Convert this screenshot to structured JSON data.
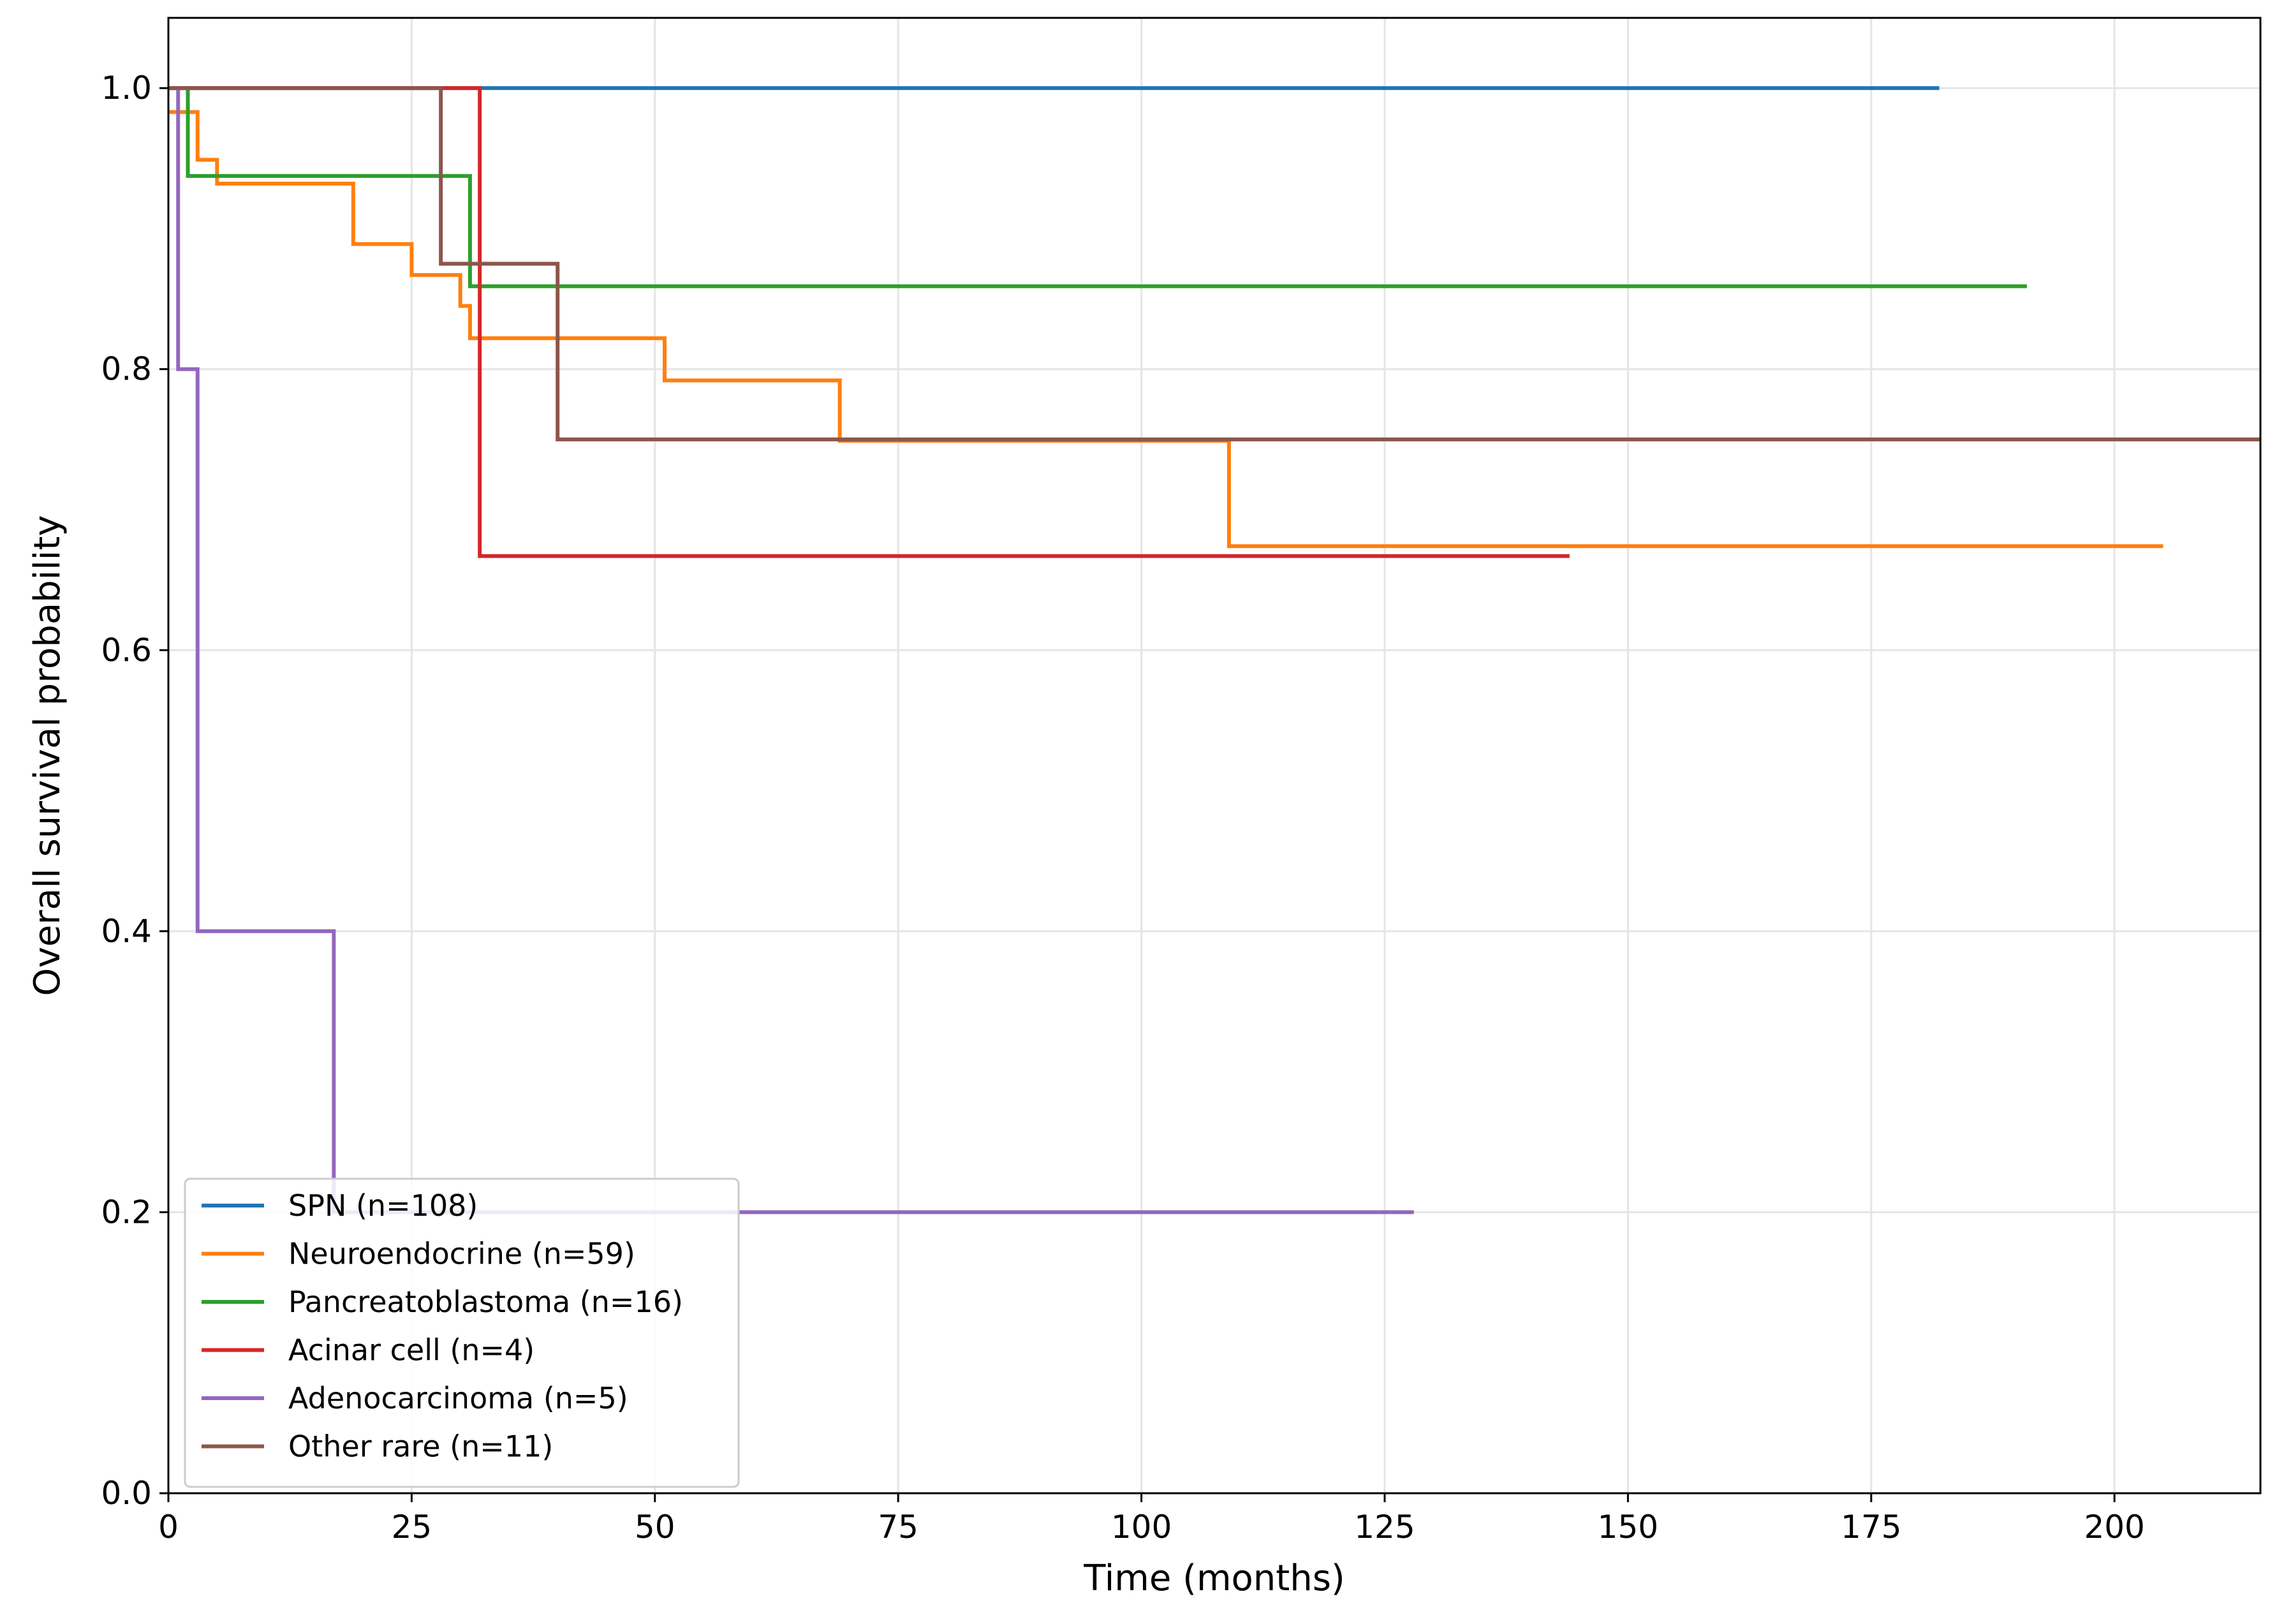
{
  "chart_data": {
    "type": "line",
    "title": "",
    "xlabel": "Time (months)",
    "ylabel": "Overall survival probability",
    "xlim": [
      0,
      215
    ],
    "ylim": [
      0,
      1.05
    ],
    "xticks": [
      0,
      25,
      50,
      75,
      100,
      125,
      150,
      175,
      200
    ],
    "yticks": [
      0.0,
      0.2,
      0.4,
      0.6,
      0.8,
      1.0
    ],
    "grid": true,
    "legend_position": "lower-left",
    "step": "post",
    "series": [
      {
        "name": "SPN (n=108)",
        "color": "#1f77b4",
        "x": [
          0,
          182
        ],
        "y": [
          1.0,
          1.0
        ]
      },
      {
        "name": "Neuroendocrine (n=59)",
        "color": "#ff7f0e",
        "x": [
          0,
          1,
          3,
          5,
          19,
          25,
          30,
          31,
          51,
          69,
          109,
          205
        ],
        "y": [
          0.983,
          0.983,
          0.949,
          0.932,
          0.889,
          0.867,
          0.845,
          0.822,
          0.792,
          0.749,
          0.674,
          0.674
        ]
      },
      {
        "name": "Pancreatoblastoma (n=16)",
        "color": "#2ca02c",
        "x": [
          0,
          2,
          31,
          191
        ],
        "y": [
          1.0,
          0.9375,
          0.859,
          0.859
        ]
      },
      {
        "name": "Acinar cell (n=4)",
        "color": "#d62728",
        "x": [
          0,
          32,
          144
        ],
        "y": [
          1.0,
          0.667,
          0.667
        ]
      },
      {
        "name": "Adenocarcinoma (n=5)",
        "color": "#9467bd",
        "x": [
          0,
          1,
          3,
          17,
          128
        ],
        "y": [
          1.0,
          0.8,
          0.4,
          0.2,
          0.2
        ]
      },
      {
        "name": "Other rare (n=11)",
        "color": "#8c564b",
        "x": [
          0,
          28,
          40,
          215
        ],
        "y": [
          1.0,
          0.875,
          0.75,
          0.75
        ]
      }
    ]
  }
}
